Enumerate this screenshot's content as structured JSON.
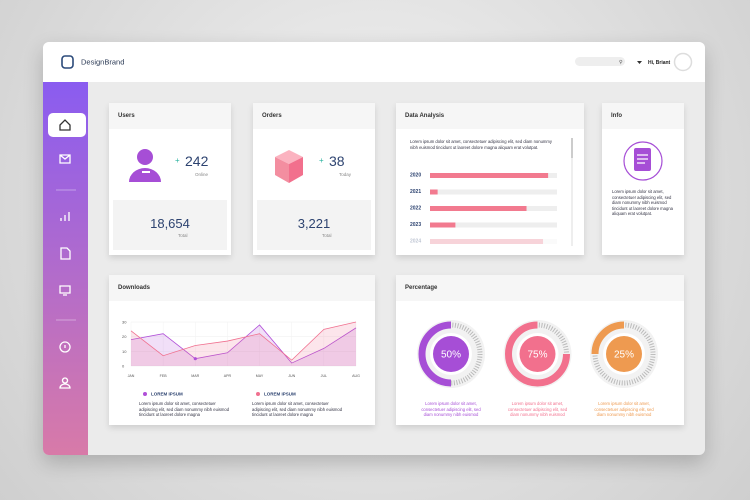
{
  "brand": "DesignBrand",
  "header": {
    "greeting": "Hi, Briant"
  },
  "users": {
    "title": "Users",
    "online": "242",
    "online_label": "Online",
    "total": "18,654",
    "total_label": "Total"
  },
  "orders": {
    "title": "Orders",
    "today": "38",
    "today_label": "Today",
    "total": "3,221",
    "total_label": "Total"
  },
  "data_analysis": {
    "title": "Data Analysis",
    "text": "Lorem ipsum dolor sit amet, consectetuer adipiscing elit, sed diam nonummy nibh euismod tincidunt ut laoreet dolore magna aliquam erat volutpat.",
    "chart": {
      "type": "bar",
      "categories": [
        "2020",
        "2021",
        "2022",
        "2023",
        "2024"
      ],
      "values": [
        93,
        6,
        76,
        20,
        89
      ],
      "xlim": [
        0,
        100
      ],
      "color": "#f27a8f"
    }
  },
  "info": {
    "title": "Info",
    "text": "Lorem ipsum dolor sit amet, consectetuer adipiscing elit, sed diam nonummy nibh euismod tincidunt ut laoreet dolore magna aliquam erat volutpat."
  },
  "downloads": {
    "title": "Downloads",
    "chart": {
      "type": "area",
      "categories": [
        "JAN",
        "FEB",
        "MAR",
        "APR",
        "MAY",
        "JUN",
        "JUL",
        "AUG"
      ],
      "series": [
        {
          "name": "LOREM IPSUM",
          "color": "#b04fd8",
          "values": [
            18,
            22,
            5,
            9,
            28,
            2,
            12,
            26
          ]
        },
        {
          "name": "LOREM IPSUM",
          "color": "#f0708f",
          "values": [
            24,
            7,
            14,
            17,
            22,
            4,
            25,
            30
          ]
        }
      ],
      "ylim": [
        0,
        30
      ],
      "yticks": [
        0,
        10,
        20,
        30
      ]
    },
    "notes": [
      "Lorem ipsum dolor sit amet, consectetuer adipiscing elit, sed diam nonummy nibh euismod tincidunt ut laoreet dolore magna",
      "Lorem ipsum dolor sit amet, consectetuer adipiscing elit, sed diam nonummy nibh euismod tincidunt ut laoreet dolore magna"
    ]
  },
  "percentage": {
    "title": "Percentage",
    "chart": {
      "type": "donut",
      "values": [
        50,
        75,
        25
      ],
      "value_labels": [
        "50%",
        "75%",
        "25%"
      ],
      "colors": [
        "#a64ed6",
        "#f2708d",
        "#ee9a50"
      ],
      "texts": [
        "Lorem ipsum dolor sit amet, consectetuer adipiscing elit, sed diam nonummy nibh euismod",
        "Lorem ipsum dolor sit amet, consectetuer adipiscing elit, sed diam nonummy nibh euismod",
        "Lorem ipsum dolor sit amet, consectetuer adipiscing elit, sed diam nonummy nibh euismod"
      ]
    }
  }
}
